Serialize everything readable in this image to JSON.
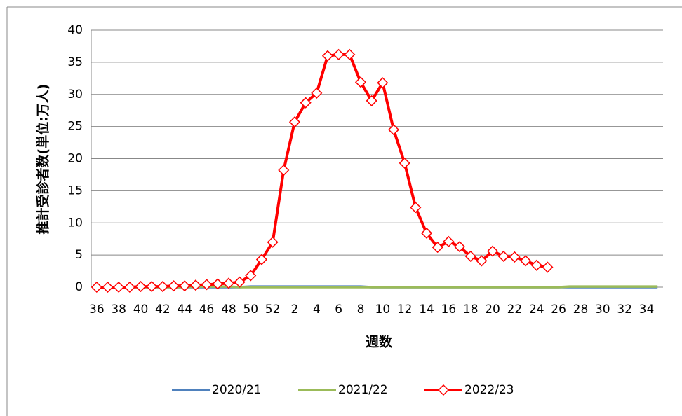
{
  "chart_data": {
    "type": "line",
    "y_label": "推計受診者数(単位:万人)",
    "x_label": "週数",
    "categories": [
      "36",
      null,
      "38",
      null,
      "40",
      null,
      "42",
      null,
      "44",
      null,
      "46",
      null,
      "48",
      null,
      "50",
      null,
      "52",
      null,
      "2",
      null,
      "4",
      null,
      "6",
      null,
      "8",
      null,
      "10",
      null,
      "12",
      null,
      "14",
      null,
      "16",
      null,
      "18",
      null,
      "20",
      null,
      "22",
      null,
      "24",
      null,
      "26",
      null,
      "28",
      null,
      "30",
      null,
      "32",
      null,
      "34",
      null
    ],
    "series": [
      {
        "name": "2020/21",
        "color": "#4f81bd",
        "marker": false,
        "values": [
          0,
          0,
          0,
          0,
          0,
          0,
          0,
          0,
          0,
          0,
          0,
          0,
          0,
          0,
          0.1,
          0.1,
          0.1,
          0.1,
          0.1,
          0.1,
          0.1,
          0.1,
          0.1,
          0.1,
          0.1,
          0,
          0,
          0,
          0,
          0,
          0,
          0,
          0,
          0,
          0,
          0,
          0,
          0,
          0,
          0,
          0,
          0,
          0,
          0,
          0,
          0,
          0,
          0,
          0,
          0,
          0,
          0
        ]
      },
      {
        "name": "2021/22",
        "color": "#9bbb59",
        "marker": false,
        "values": [
          0,
          0,
          0,
          0,
          0,
          0,
          0,
          0,
          0,
          0.1,
          0.1,
          0.1,
          0.1,
          0,
          0,
          0,
          0,
          0,
          0,
          0,
          0,
          0,
          0,
          0,
          0,
          0,
          0,
          0,
          0,
          0,
          0,
          0,
          0,
          0,
          0,
          0,
          0,
          0,
          0,
          0,
          0,
          0,
          0,
          0.1,
          0.1,
          0.1,
          0.1,
          0.1,
          0.1,
          0.1,
          0.1,
          0.1
        ]
      },
      {
        "name": "2022/23",
        "color": "#ff0000",
        "marker": true,
        "values": [
          0,
          0,
          0,
          0,
          0.1,
          0.1,
          0.1,
          0.2,
          0.2,
          0.3,
          0.4,
          0.5,
          0.6,
          0.8,
          1.8,
          4.3,
          7,
          18.2,
          25.7,
          28.7,
          30.2,
          36,
          36.2,
          36.2,
          31.9,
          29,
          31.8,
          24.5,
          19.3,
          12.4,
          8.4,
          6.2,
          7.1,
          6.3,
          4.8,
          4.1,
          5.6,
          4.8,
          4.7,
          4.1,
          3.4,
          3.1,
          null,
          null,
          null,
          null,
          null,
          null,
          null,
          null,
          null,
          null
        ]
      }
    ],
    "ylim": [
      0,
      40
    ],
    "yticks": [
      0,
      5,
      10,
      15,
      20,
      25,
      30,
      35,
      40
    ],
    "grid": true
  }
}
